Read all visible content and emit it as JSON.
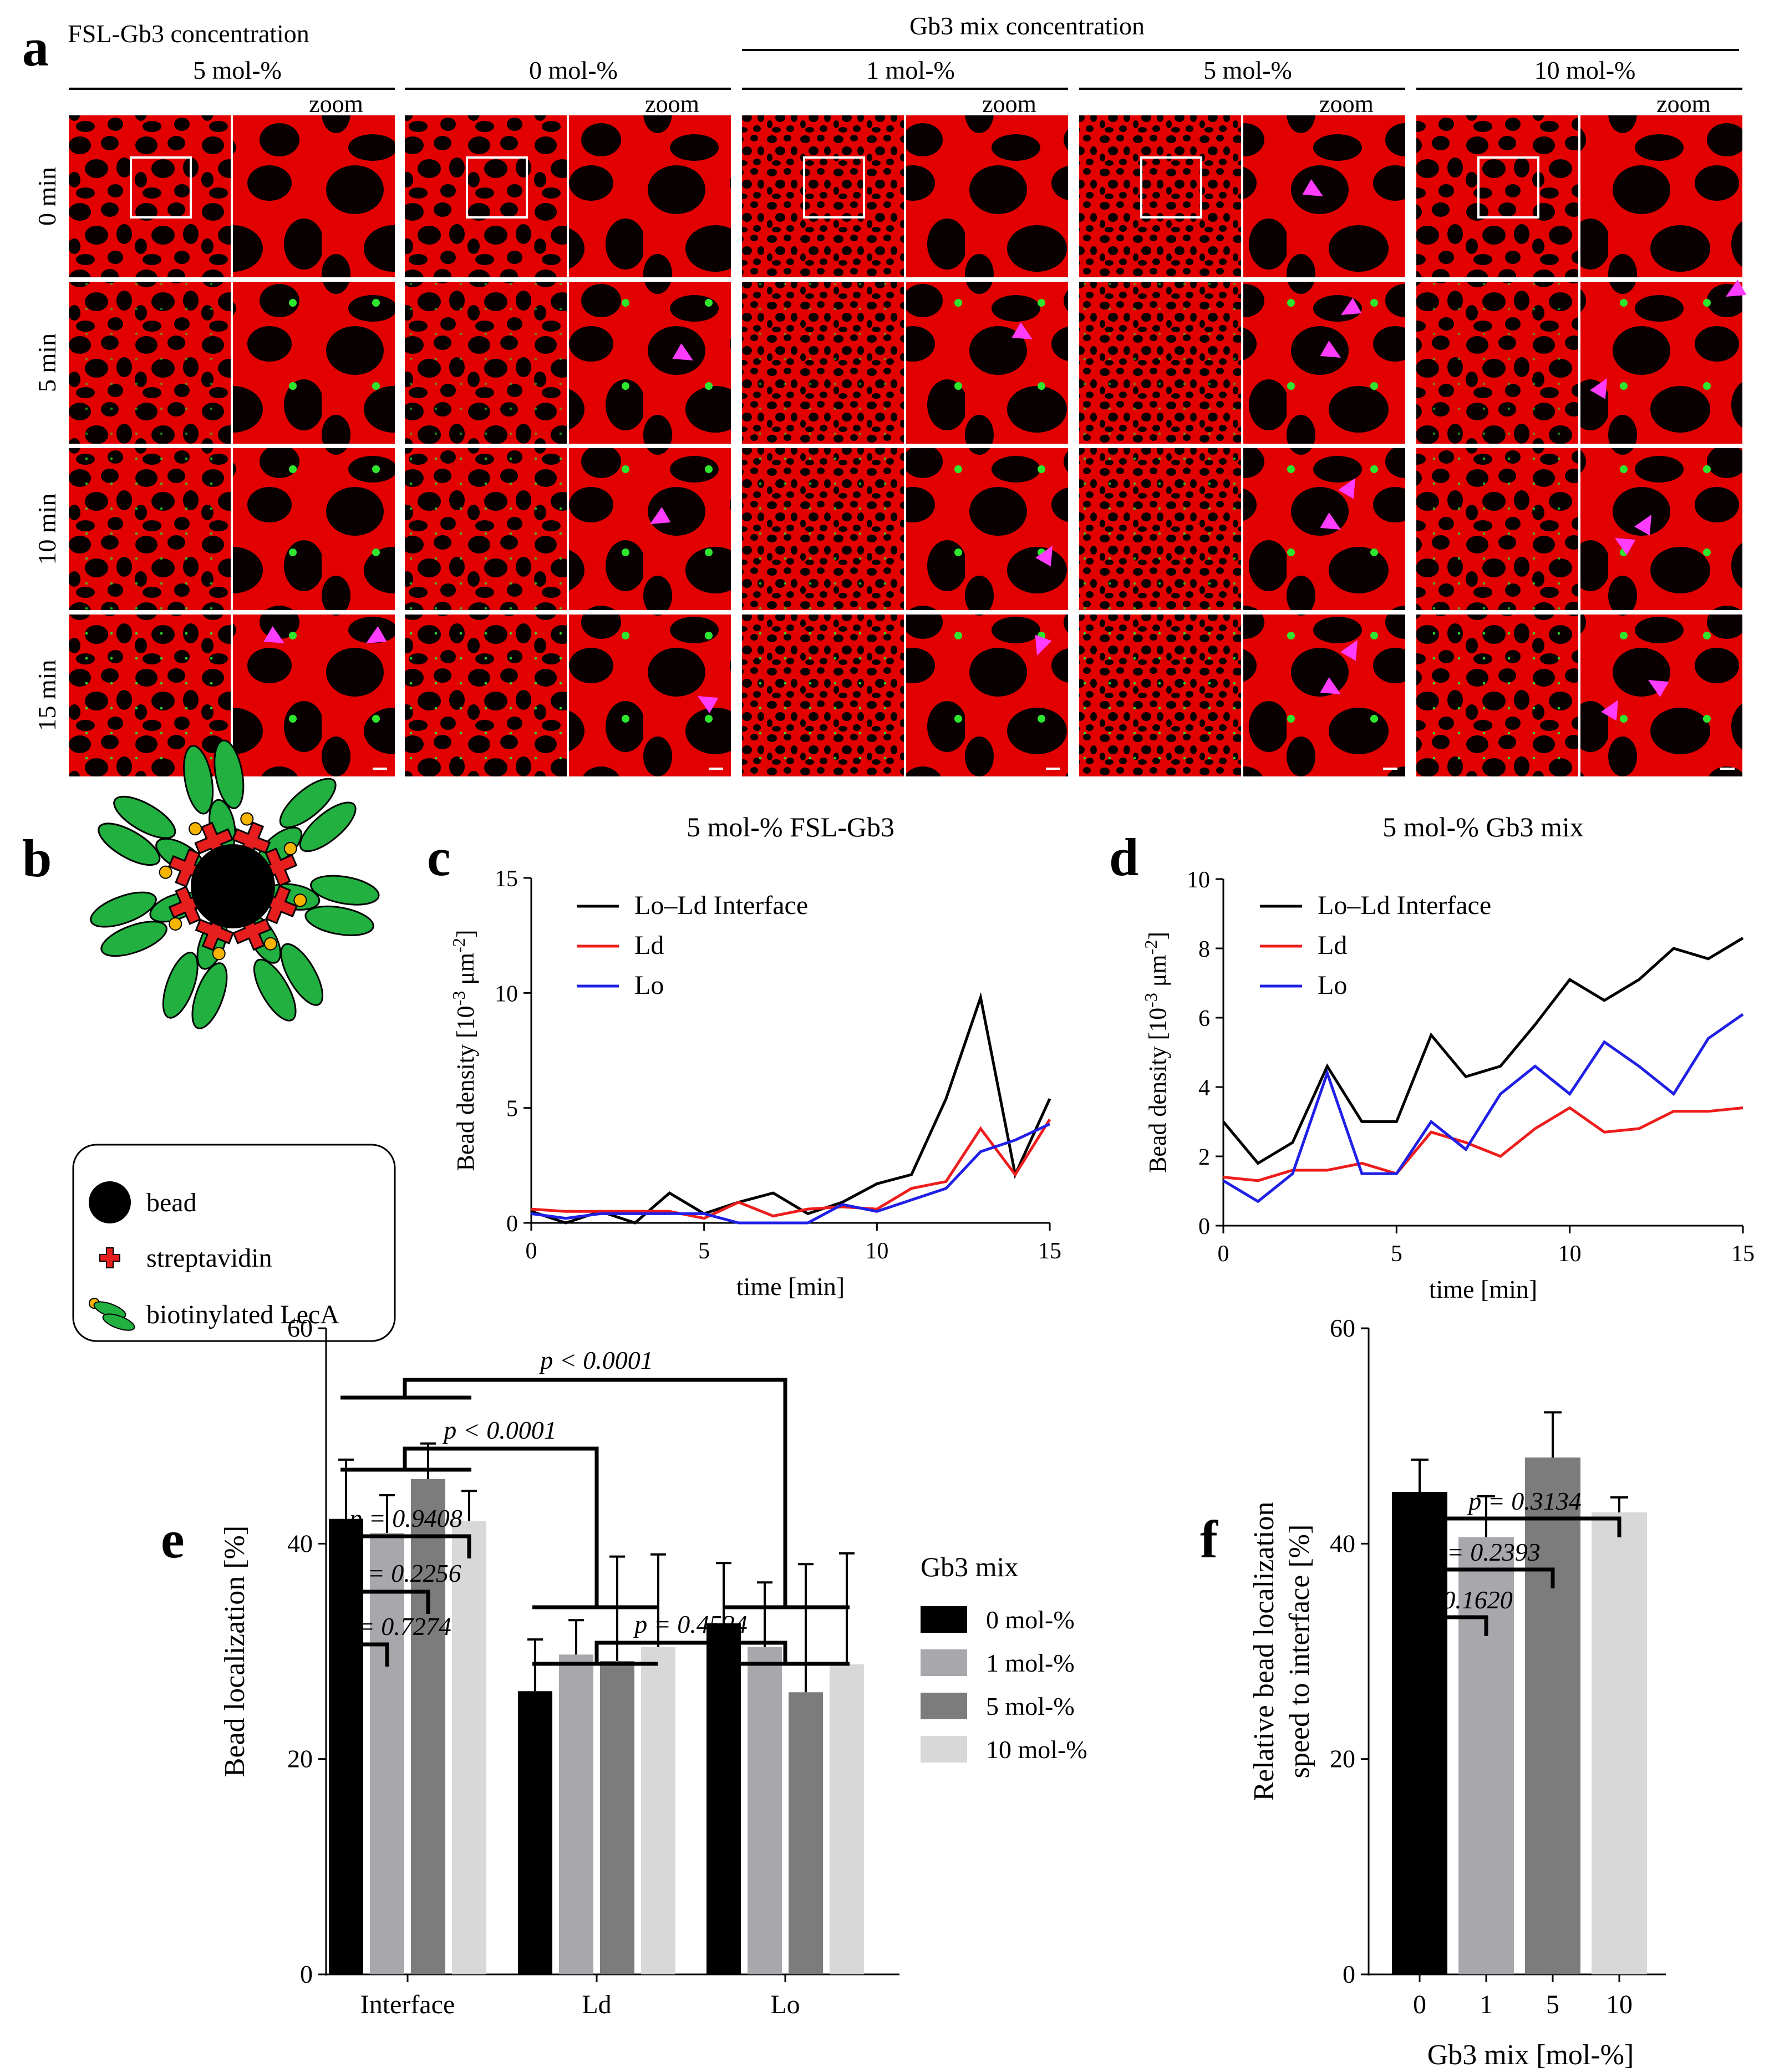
{
  "panel_letters": {
    "a": "a",
    "b": "b",
    "c": "c",
    "d": "d",
    "e": "e",
    "f": "f"
  },
  "colors": {
    "membrane_red": "#e30000",
    "domain_black": "#080000",
    "bead_green": "#2ee62e",
    "arrow_magenta": "#ff3cff",
    "streptavidin_red": "#e61e1e",
    "lecA_green": "#22b040",
    "biotin_yellow": "#f5b400",
    "line_black": "#000000",
    "line_red": "#ee1c1c",
    "line_blue": "#1f1fe6",
    "bar_0": "#000000",
    "bar_1": "#a8a8ac",
    "bar_5": "#7c7c7c",
    "bar_10": "#d8d8d8"
  },
  "panel_a": {
    "group_fsl_title": "FSL-Gb3 concentration",
    "group_mix_title": "Gb3 mix concentration",
    "columns": [
      {
        "label": "5 mol-%",
        "zoom_label": "zoom"
      },
      {
        "label": "0 mol-%",
        "zoom_label": "zoom"
      },
      {
        "label": "1 mol-%",
        "zoom_label": "zoom"
      },
      {
        "label": "5 mol-%",
        "zoom_label": "zoom"
      },
      {
        "label": "10 mol-%",
        "zoom_label": "zoom"
      }
    ],
    "row_labels": [
      "0 min",
      "5 min",
      "10 min",
      "15 min"
    ]
  },
  "panel_b": {
    "legend": {
      "bead": "bead",
      "streptavidin": "streptavidin",
      "lecA": "biotinylated LecA"
    }
  },
  "chart_data": [
    {
      "panel": "c",
      "type": "line",
      "title": "5 mol-% FSL-Gb3",
      "xlabel": "time [min]",
      "ylabel": "Bead density [10",
      "ylabel_sup1": "-3",
      "ylabel_unit": " μm",
      "ylabel_sup2": "-2",
      "ylabel_end": "]",
      "xlim": [
        0,
        15
      ],
      "ylim": [
        0,
        15
      ],
      "xticks": [
        0,
        5,
        10,
        15
      ],
      "yticks": [
        0,
        5,
        10,
        15
      ],
      "x": [
        0,
        1,
        2,
        3,
        4,
        5,
        6,
        7,
        8,
        9,
        10,
        11,
        12,
        13,
        14,
        15
      ],
      "series": [
        {
          "name": "Lo–Ld Interface",
          "color": "#000000",
          "values": [
            0.5,
            0.0,
            0.5,
            0.0,
            1.3,
            0.4,
            0.9,
            1.3,
            0.4,
            0.9,
            1.7,
            2.1,
            5.4,
            9.8,
            2.1,
            5.4
          ]
        },
        {
          "name": "Ld",
          "color": "#ee1c1c",
          "values": [
            0.6,
            0.5,
            0.5,
            0.5,
            0.5,
            0.2,
            0.9,
            0.3,
            0.6,
            0.7,
            0.6,
            1.5,
            1.8,
            4.1,
            2.1,
            4.5
          ]
        },
        {
          "name": "Lo",
          "color": "#1f1fe6",
          "values": [
            0.4,
            0.2,
            0.4,
            0.4,
            0.4,
            0.4,
            0.0,
            0.0,
            0.0,
            0.8,
            0.5,
            1.0,
            1.5,
            3.1,
            3.6,
            4.3
          ]
        }
      ]
    },
    {
      "panel": "d",
      "type": "line",
      "title": "5 mol-% Gb3 mix",
      "xlabel": "time [min]",
      "ylabel": "Bead density [10",
      "ylabel_sup1": "-3",
      "ylabel_unit": " μm",
      "ylabel_sup2": "-2",
      "ylabel_end": "]",
      "xlim": [
        0,
        15
      ],
      "ylim": [
        0,
        10
      ],
      "xticks": [
        0,
        5,
        10,
        15
      ],
      "yticks": [
        0,
        2,
        4,
        6,
        8,
        10
      ],
      "x": [
        0,
        1,
        2,
        3,
        4,
        5,
        6,
        7,
        8,
        9,
        10,
        11,
        12,
        13,
        14,
        15
      ],
      "series": [
        {
          "name": "Lo–Ld Interface",
          "color": "#000000",
          "values": [
            3.0,
            1.8,
            2.4,
            4.6,
            3.0,
            3.0,
            5.5,
            4.3,
            4.6,
            5.8,
            7.1,
            6.5,
            7.1,
            8.0,
            7.7,
            8.3
          ]
        },
        {
          "name": "Ld",
          "color": "#ee1c1c",
          "values": [
            1.4,
            1.3,
            1.6,
            1.6,
            1.8,
            1.5,
            2.7,
            2.4,
            2.0,
            2.8,
            3.4,
            2.7,
            2.8,
            3.3,
            3.3,
            3.4
          ]
        },
        {
          "name": "Lo",
          "color": "#1f1fe6",
          "values": [
            1.3,
            0.7,
            1.5,
            4.4,
            1.5,
            1.5,
            3.0,
            2.2,
            3.8,
            4.6,
            3.8,
            5.3,
            4.6,
            3.8,
            5.4,
            6.1
          ]
        }
      ]
    },
    {
      "panel": "e",
      "type": "bar",
      "ylabel": "Bead localization [%]",
      "ylim": [
        0,
        60
      ],
      "yticks": [
        0,
        20,
        40,
        60
      ],
      "categories": [
        "Interface",
        "Ld",
        "Lo"
      ],
      "legend_title": "Gb3 mix",
      "series": [
        {
          "name": "0 mol-%",
          "color": "#000000",
          "values": [
            42.3,
            26.3,
            32.6
          ],
          "errors": [
            5.5,
            4.8,
            5.6
          ]
        },
        {
          "name": "1 mol-%",
          "color": "#a8a8ac",
          "values": [
            41.0,
            29.7,
            30.4
          ],
          "errors": [
            3.5,
            3.2,
            6.0
          ]
        },
        {
          "name": "5 mol-%",
          "color": "#7c7c7c",
          "values": [
            46.0,
            29.1,
            26.2
          ],
          "errors": [
            3.3,
            9.7,
            11.9
          ]
        },
        {
          "name": "10 mol-%",
          "color": "#d8d8d8",
          "values": [
            42.1,
            30.4,
            28.8
          ],
          "errors": [
            2.8,
            8.6,
            10.3
          ]
        }
      ],
      "annotations": [
        {
          "label": "p = 0.7274",
          "compare": "Interface: 0 vs 1 mol-%"
        },
        {
          "label": "p = 0.2256",
          "compare": "Interface: 0 vs 5 mol-%"
        },
        {
          "label": "p = 0.9408",
          "compare": "Interface: 0 vs 10 mol-%"
        },
        {
          "label": "p < 0.0001",
          "compare": "Interface vs Ld"
        },
        {
          "label": "p < 0.0001",
          "compare": "Interface vs Lo"
        },
        {
          "label": "p = 0.4524",
          "compare": "Ld vs Lo"
        }
      ]
    },
    {
      "panel": "f",
      "type": "bar",
      "ylabel_line1": "Relative bead localization",
      "ylabel_line2": "speed to interface [%]",
      "xlabel": "Gb3 mix [mol-%]",
      "ylim": [
        0,
        60
      ],
      "yticks": [
        0,
        20,
        40,
        60
      ],
      "categories": [
        "0",
        "1",
        "5",
        "10"
      ],
      "values": [
        44.8,
        40.6,
        48.0,
        42.9
      ],
      "errors": [
        3.0,
        3.8,
        4.2,
        1.4
      ],
      "colors": [
        "#000000",
        "#a8a8ac",
        "#7c7c7c",
        "#d8d8d8"
      ],
      "annotations": [
        {
          "label": "p = 0.1620",
          "compare": "0 vs 1"
        },
        {
          "label": "p = 0.2393",
          "compare": "0 vs 5"
        },
        {
          "label": "p = 0.3134",
          "compare": "0 vs 10"
        }
      ]
    }
  ]
}
